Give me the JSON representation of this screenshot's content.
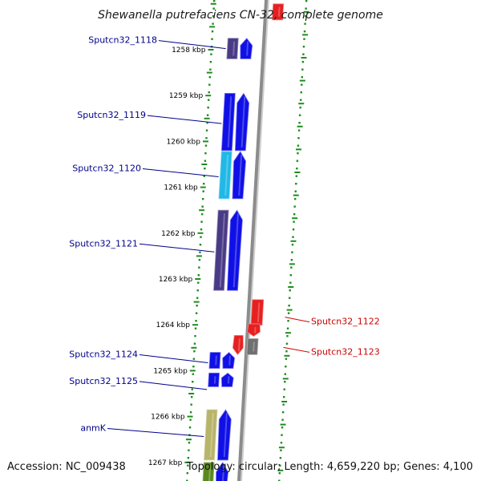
{
  "title": "Shewanella putrefaciens CN-32, complete genome",
  "accession": "Accession: NC_009438",
  "topology": "Topology: circular; Length: 4,659,220 bp; Genes: 4,100",
  "ticks": [
    "1258 kbp",
    "1259 kbp",
    "1260 kbp",
    "1261 kbp",
    "1262 kbp",
    "1263 kbp",
    "1264 kbp",
    "1265 kbp",
    "1266 kbp",
    "1267 kbp"
  ],
  "genes_forward": [
    {
      "label": "Sputcn32_1118",
      "start_kbp": 1257.75,
      "end_kbp": 1258.2,
      "cog_color": "#4a3a86"
    },
    {
      "label": "Sputcn32_1119",
      "start_kbp": 1258.95,
      "end_kbp": 1260.2,
      "cog_color": "#1010e6"
    },
    {
      "label": "Sputcn32_1120",
      "start_kbp": 1260.22,
      "end_kbp": 1261.25,
      "cog_color": "#21b8e6"
    },
    {
      "label": "Sputcn32_1121",
      "start_kbp": 1261.5,
      "end_kbp": 1263.25,
      "cog_color": "#4a3a86"
    },
    {
      "label": "Sputcn32_1124",
      "start_kbp": 1264.6,
      "end_kbp": 1264.95,
      "cog_color": "#1010e6"
    },
    {
      "label": "Sputcn32_1125",
      "start_kbp": 1265.05,
      "end_kbp": 1265.35,
      "cog_color": "#1010e6"
    },
    {
      "label": "anmK",
      "start_kbp": 1265.85,
      "end_kbp": 1266.95,
      "cog_color": "#b8b46a"
    },
    {
      "label": "",
      "start_kbp": 1267.0,
      "end_kbp": 1267.6,
      "cog_color": "#5a8a1e"
    }
  ],
  "genes_reverse": [
    {
      "label": "Sputcn32_1122",
      "start_kbp": 1263.45,
      "end_kbp": 1264.25,
      "cog_color": "#e62020"
    },
    {
      "label": "Sputcn32_1123",
      "start_kbp": 1264.3,
      "end_kbp": 1264.65,
      "cog_color": "#707070"
    },
    {
      "label": "",
      "start_kbp": 1257.0,
      "end_kbp": 1257.35,
      "cog_color": "#e62020"
    }
  ],
  "cds_forward_color": "#1010e6",
  "forward_label_color": "#00008b",
  "reverse_label_color": "#cc0000",
  "backbone_color": "#8c8c8c",
  "tick_color": "#1e8c1e"
}
